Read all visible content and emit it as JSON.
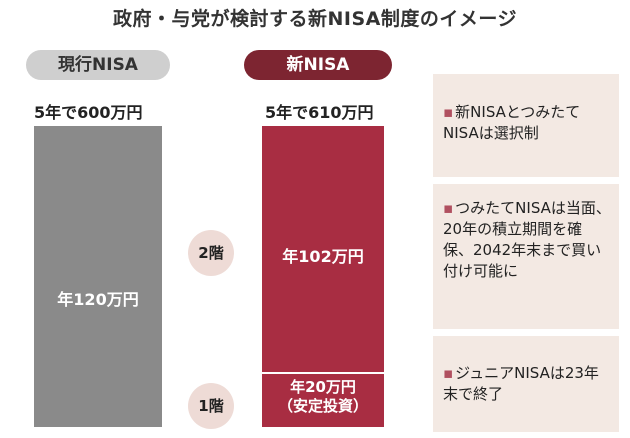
{
  "title": "政府・与党が検討する新NISA制度のイメージ",
  "current": {
    "label": "現行NISA",
    "total": "5年で600万円",
    "annual": "年120万円"
  },
  "new": {
    "label": "新NISA",
    "total": "5年で610万円",
    "floor2": {
      "tag": "2階",
      "amount": "年102万円"
    },
    "floor1": {
      "tag": "1階",
      "amount": "年20万円",
      "note": "（安定投資）"
    }
  },
  "notes": [
    {
      "bullet": "▪",
      "text": "新NISAとつみたてNISAは選択制"
    },
    {
      "bullet": "▪",
      "text": "つみたてNISAは当面、20年の積立期間を確保、2042年末まで買い付け可能に"
    },
    {
      "bullet": "▪",
      "text": "ジュニアNISAは23年末で終了"
    }
  ],
  "colors": {
    "current_bar": "#8a8a8a",
    "new_bar": "#a82d42",
    "new_pill": "#7d2531",
    "note_bg": "#f3e9e3",
    "circle_bg": "#eedbd6"
  }
}
